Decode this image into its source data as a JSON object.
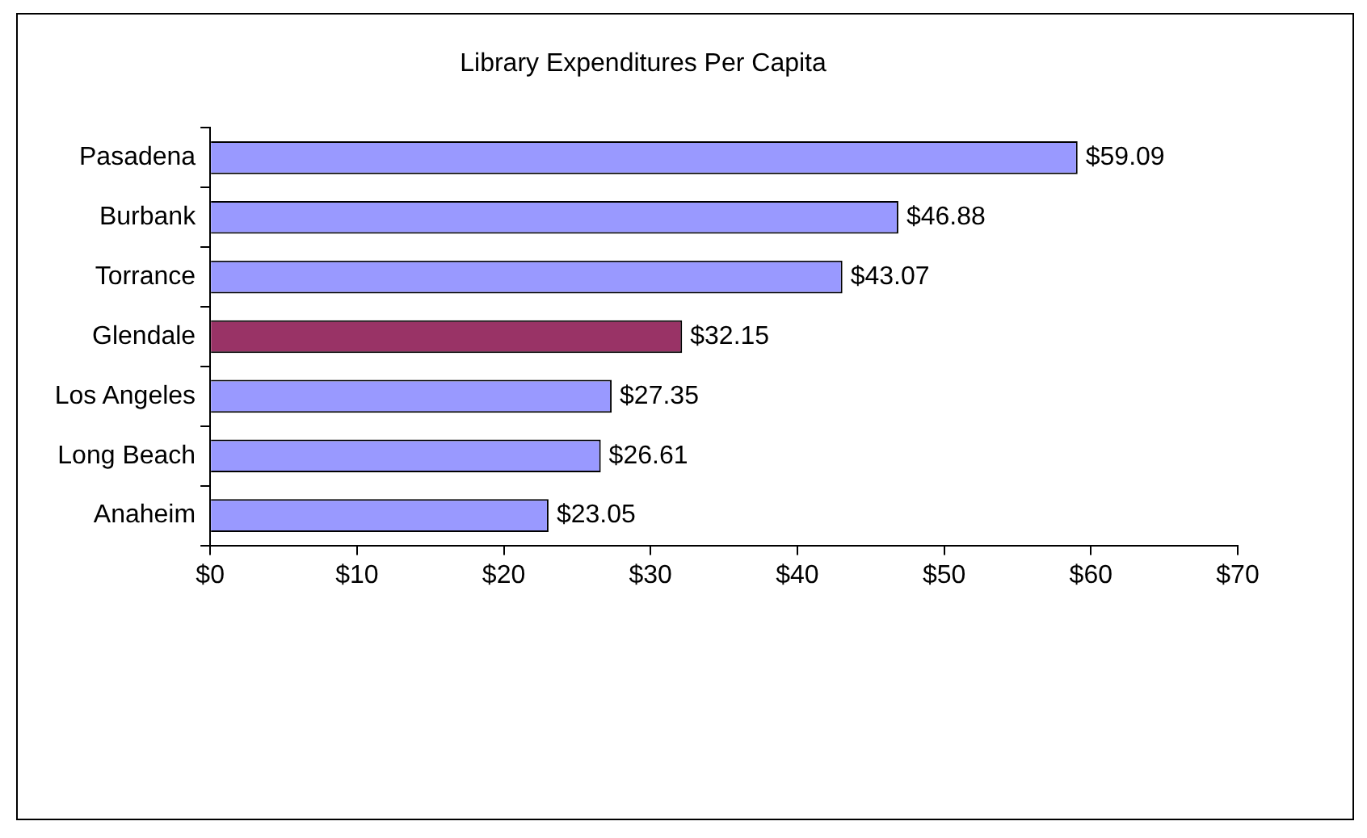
{
  "chart_data": {
    "type": "bar",
    "orientation": "horizontal",
    "title": "Library Expenditures Per Capita",
    "categories": [
      "Pasadena",
      "Burbank",
      "Torrance",
      "Glendale",
      "Los Angeles",
      "Long Beach",
      "Anaheim"
    ],
    "values": [
      59.09,
      46.88,
      43.07,
      32.15,
      27.35,
      26.61,
      23.05
    ],
    "colors": [
      "#9999ff",
      "#9999ff",
      "#9999ff",
      "#993366",
      "#9999ff",
      "#9999ff",
      "#9999ff"
    ],
    "value_labels": [
      "$59.09",
      "$46.88",
      "$43.07",
      "$32.15",
      "$27.35",
      "$26.61",
      "$23.05"
    ],
    "xlim": [
      0,
      70
    ],
    "xticks": [
      {
        "value": 0,
        "label": "$0"
      },
      {
        "value": 10,
        "label": "$10"
      },
      {
        "value": 20,
        "label": "$20"
      },
      {
        "value": 30,
        "label": "$30"
      },
      {
        "value": 40,
        "label": "$40"
      },
      {
        "value": 50,
        "label": "$50"
      },
      {
        "value": 60,
        "label": "$60"
      },
      {
        "value": 70,
        "label": "$70"
      }
    ]
  }
}
